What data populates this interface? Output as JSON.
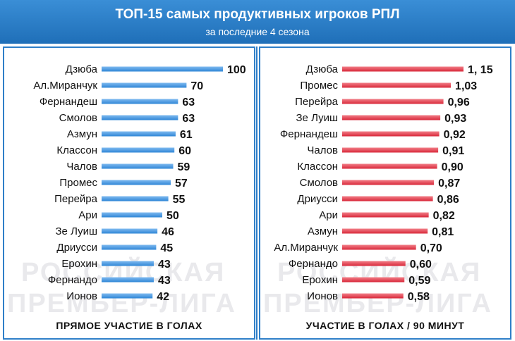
{
  "header": {
    "title": "ТОП-15 самых продуктивных игроков РПЛ",
    "subtitle": "за последние 4 сезона"
  },
  "watermark": {
    "line1": "РОССИЙСКАЯ",
    "line2": "ПРЕМЬЕР-ЛИГА"
  },
  "colors": {
    "header": "#2a7fcc",
    "left_bar": "#2f86d6",
    "right_bar": "#d8283a"
  },
  "chart_data": [
    {
      "type": "bar",
      "orientation": "horizontal",
      "title": "ПРЯМОЕ УЧАСТИЕ В ГОЛАХ",
      "categories": [
        "Дзюба",
        "Ал.Миранчук",
        "Фернандеш",
        "Смолов",
        "Азмун",
        "Классон",
        "Чалов",
        "Промес",
        "Перейра",
        "Ари",
        "Зе Луиш",
        "Дриусси",
        "Ерохин",
        "Фернандо",
        "Ионов"
      ],
      "values": [
        100,
        70,
        63,
        63,
        61,
        60,
        59,
        57,
        55,
        50,
        46,
        45,
        43,
        43,
        42
      ],
      "labels": [
        "100",
        "70",
        "63",
        "63",
        "61",
        "60",
        "59",
        "57",
        "55",
        "50",
        "46",
        "45",
        "43",
        "43",
        "42"
      ],
      "xlim": [
        0,
        100
      ]
    },
    {
      "type": "bar",
      "orientation": "horizontal",
      "title": "УЧАСТИЕ В ГОЛАХ / 90 МИНУТ",
      "categories": [
        "Дзюба",
        "Промес",
        "Перейра",
        "Зе Луиш",
        "Фернандеш",
        "Чалов",
        "Классон",
        "Смолов",
        "Дриусси",
        "Ари",
        "Азмун",
        "Ал.Миранчук",
        "Фернандо",
        "Ерохин",
        "Ионов"
      ],
      "values": [
        1.15,
        1.03,
        0.96,
        0.93,
        0.92,
        0.91,
        0.9,
        0.87,
        0.86,
        0.82,
        0.81,
        0.7,
        0.6,
        0.59,
        0.58
      ],
      "labels": [
        "1, 15",
        "1,03",
        "0,96",
        "0,93",
        "0,92",
        "0,91",
        "0,90",
        "0,87",
        "0,86",
        "0,82",
        "0,81",
        "0,70",
        "0,60",
        "0,59",
        "0,58"
      ],
      "xlim": [
        0,
        1.15
      ]
    }
  ]
}
